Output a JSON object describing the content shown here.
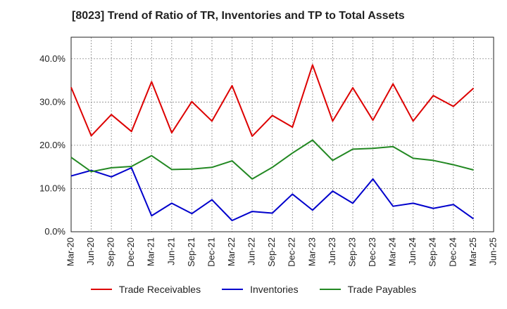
{
  "title": "[8023]  Trend of Ratio of TR, Inventories and TP to Total Assets",
  "chart_data": {
    "type": "line",
    "title": "[8023]  Trend of Ratio of TR, Inventories and TP to Total Assets",
    "xlabel": "",
    "ylabel": "",
    "categories": [
      "Mar-20",
      "Jun-20",
      "Sep-20",
      "Dec-20",
      "Mar-21",
      "Jun-21",
      "Sep-21",
      "Dec-21",
      "Mar-22",
      "Jun-22",
      "Sep-22",
      "Dec-22",
      "Mar-23",
      "Jun-23",
      "Sep-23",
      "Dec-23",
      "Mar-24",
      "Jun-24",
      "Sep-24",
      "Dec-24",
      "Mar-25",
      "Jun-25"
    ],
    "ylim": [
      0,
      45
    ],
    "yticks": [
      0,
      10,
      20,
      30,
      40
    ],
    "ytick_labels": [
      "0.0%",
      "10.0%",
      "20.0%",
      "30.0%",
      "40.0%"
    ],
    "grid": true,
    "legend_position": "bottom",
    "series": [
      {
        "name": "Trade Receivables",
        "color": "#dd0000",
        "values": [
          33.4,
          22.2,
          27.1,
          23.2,
          34.7,
          22.9,
          30.1,
          25.6,
          33.8,
          22.1,
          26.9,
          24.2,
          38.6,
          25.6,
          33.3,
          25.8,
          34.2,
          25.6,
          31.5,
          29.0,
          33.2,
          null
        ]
      },
      {
        "name": "Inventories",
        "color": "#0000cc",
        "values": [
          12.9,
          14.2,
          12.7,
          14.8,
          3.7,
          6.6,
          4.2,
          7.4,
          2.6,
          4.7,
          4.3,
          8.7,
          5.0,
          9.4,
          6.6,
          12.2,
          5.9,
          6.6,
          5.4,
          6.3,
          3.0,
          null
        ]
      },
      {
        "name": "Trade Payables",
        "color": "#228822",
        "values": [
          17.2,
          13.9,
          14.8,
          15.1,
          17.6,
          14.4,
          14.5,
          14.9,
          16.4,
          12.2,
          14.9,
          18.2,
          21.2,
          16.5,
          19.1,
          19.3,
          19.7,
          17.0,
          16.5,
          15.5,
          14.3,
          null
        ]
      }
    ]
  }
}
